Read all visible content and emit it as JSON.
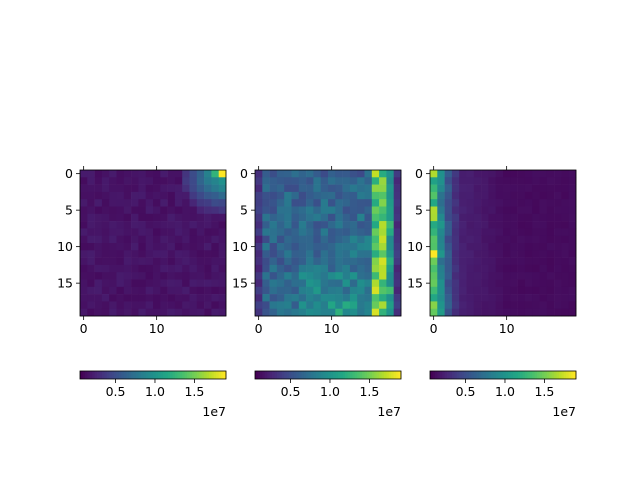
{
  "chart_data": [
    {
      "type": "heatmap",
      "description": "Mostly dark; faint brighter band along top-right corner",
      "grid_size": [
        20,
        20
      ],
      "pattern": "corner",
      "x_ticks": [
        "0",
        "10"
      ],
      "y_ticks": [
        "0",
        "5",
        "10",
        "15"
      ],
      "colorbar": {
        "ticks": [
          "0.5",
          "1.0",
          "1.5"
        ],
        "offset_text": "1e7",
        "vmin": 0.05,
        "vmax": 1.9
      }
    },
    {
      "type": "heatmap",
      "description": "Mid-range values with bright vertical stripe near columns 16-18",
      "grid_size": [
        20,
        20
      ],
      "pattern": "stripe-right",
      "x_ticks": [
        "0",
        "10"
      ],
      "y_ticks": [
        "0",
        "5",
        "10",
        "15"
      ],
      "colorbar": {
        "ticks": [
          "0.5",
          "1.0",
          "1.5"
        ],
        "offset_text": "1e7",
        "vmin": 0.05,
        "vmax": 1.9
      }
    },
    {
      "type": "heatmap",
      "description": "Bright column at left edge fading to dark to the right",
      "grid_size": [
        20,
        20
      ],
      "pattern": "stripe-left",
      "x_ticks": [
        "0",
        "10"
      ],
      "y_ticks": [
        "0",
        "5",
        "10",
        "15"
      ],
      "colorbar": {
        "ticks": [
          "0.5",
          "1.0",
          "1.5"
        ],
        "offset_text": "1e7",
        "vmin": 0.05,
        "vmax": 1.9
      }
    }
  ],
  "colormap": "viridis"
}
